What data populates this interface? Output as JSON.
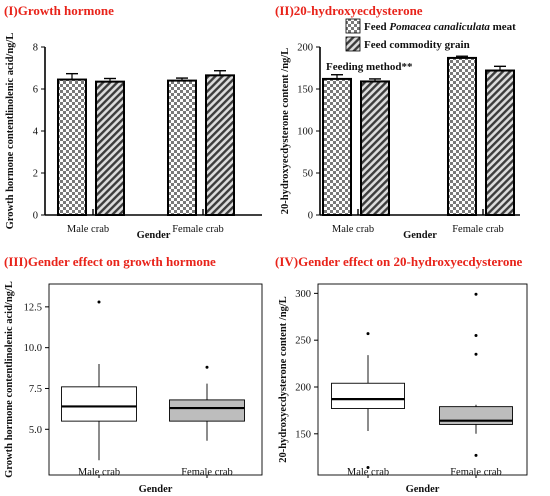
{
  "colors": {
    "title": "#e8231a",
    "box_male": "#ffffff",
    "box_female": "#bdbdbd",
    "axis": "#000000"
  },
  "panels": {
    "p1": {
      "title": "(I)Growth hormone"
    },
    "p2": {
      "title": "(II)20-hydroxyecdysterone"
    },
    "p3": {
      "title": "(III)Gender effect on growth hormone"
    },
    "p4": {
      "title": "(IV)Gender effect on 20-hydroxyecdysterone"
    }
  },
  "legend": {
    "pattern1_prefix": "Feed ",
    "pattern1_italic": "Pomacea canaliculata",
    "pattern1_suffix": " meat",
    "pattern2": "Feed commodity grain"
  },
  "chart_data": [
    {
      "id": "p1",
      "type": "bar",
      "title": "(I)Growth hormone",
      "xlabel": "Gender",
      "ylabel": "Growth hormone contentlinolenic acid/ng/L",
      "categories": [
        "Male crab",
        "Female crab"
      ],
      "series": [
        {
          "name": "Feed Pomacea canaliculata meat",
          "pattern": "checker",
          "values": [
            6.45,
            6.4
          ],
          "errors": [
            0.28,
            0.12
          ]
        },
        {
          "name": "Feed commodity grain",
          "pattern": "hatch",
          "values": [
            6.35,
            6.65
          ],
          "errors": [
            0.15,
            0.22
          ]
        }
      ],
      "ylim": [
        0,
        8
      ],
      "yticks": [
        0,
        2,
        4,
        6,
        8
      ],
      "grid": false
    },
    {
      "id": "p2",
      "type": "bar",
      "title": "(II)20-hydroxyecdysterone",
      "xlabel": "Gender",
      "ylabel": "20-hydroxyecdysterone content /ng/L",
      "annotation": "Feeding method**",
      "categories": [
        "Male crab",
        "Female crab"
      ],
      "series": [
        {
          "name": "Feed Pomacea canaliculata meat",
          "pattern": "checker",
          "values": [
            162,
            187
          ],
          "errors": [
            5,
            2
          ]
        },
        {
          "name": "Feed commodity grain",
          "pattern": "hatch",
          "values": [
            159,
            172
          ],
          "errors": [
            3,
            5
          ]
        }
      ],
      "ylim": [
        0,
        200
      ],
      "yticks": [
        0,
        50,
        100,
        150,
        200
      ],
      "grid": false
    },
    {
      "id": "p3",
      "type": "box",
      "title": "(III)Gender effect on growth hormone",
      "xlabel": "Gender",
      "ylabel": "Growth hormone contentlinolenic acid/ng/L",
      "categories": [
        "Male crab",
        "Female crab"
      ],
      "boxes": [
        {
          "whisker_low": 3.1,
          "q1": 5.5,
          "median": 6.4,
          "q3": 7.6,
          "whisker_high": 9.0,
          "outliers": [
            12.8
          ]
        },
        {
          "whisker_low": 4.3,
          "q1": 5.5,
          "median": 6.3,
          "q3": 6.8,
          "whisker_high": 7.8,
          "outliers": [
            8.8
          ]
        }
      ],
      "ylim": [
        2.2,
        13.9
      ],
      "yticks": [
        5.0,
        7.5,
        10.0,
        12.5
      ],
      "ytick_labels": [
        "5.0",
        "7.5",
        "10.0",
        "12.5"
      ],
      "grid": false
    },
    {
      "id": "p4",
      "type": "box",
      "title": "(IV)Gender effect on 20-hydroxyecdysterone",
      "xlabel": "Gender",
      "ylabel": "20-hydroxyecdysterone content /ng/L",
      "categories": [
        "Male crab",
        "Female crab"
      ],
      "boxes": [
        {
          "whisker_low": 153,
          "q1": 177,
          "median": 187,
          "q3": 204,
          "whisker_high": 234,
          "outliers": [
            257,
            114
          ]
        },
        {
          "whisker_low": 150,
          "q1": 160,
          "median": 164,
          "q3": 179,
          "whisker_high": 181,
          "outliers": [
            299,
            255,
            235,
            127
          ]
        }
      ],
      "ylim": [
        106,
        310
      ],
      "yticks": [
        150,
        200,
        250,
        300
      ],
      "grid": false
    }
  ]
}
